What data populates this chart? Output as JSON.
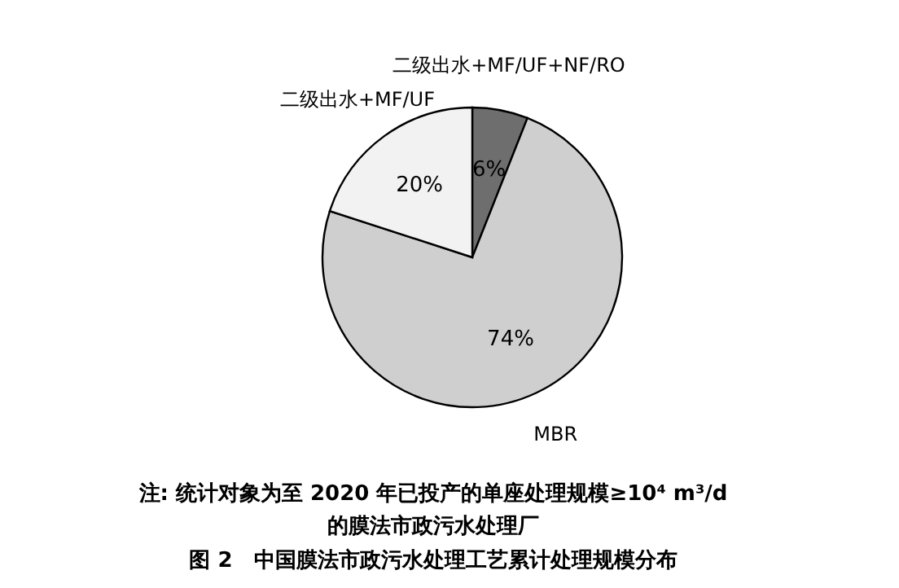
{
  "chart_data": {
    "type": "pie",
    "title": "图 2　中国膜法市政污水处理工艺累计处理规模分布",
    "categories": [
      "二级出水+MF/UF+NF/RO",
      "MBR",
      "二级出水+MF/UF"
    ],
    "values": [
      6,
      74,
      20
    ],
    "colors": [
      "#6e6e6e",
      "#cfcfcf",
      "#f2f2f2"
    ],
    "value_labels": [
      "6%",
      "74%",
      "20%"
    ],
    "legend": false,
    "annotations": [
      "注: 统计对象为至 2020 年已投产的单座处理规模≥10⁴ m³/d",
      "的膜法市政污水处理厂"
    ]
  }
}
